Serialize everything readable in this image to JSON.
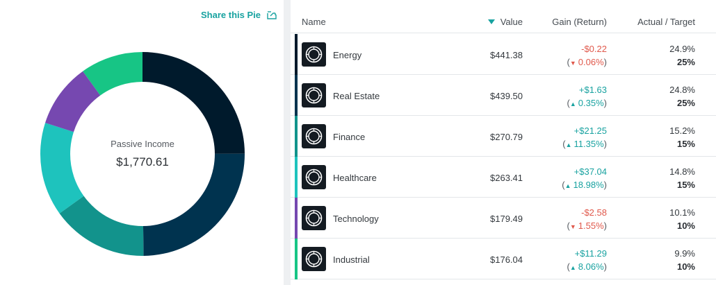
{
  "pie": {
    "share_label": "Share this Pie",
    "center_label": "Passive Income",
    "center_value": "$1,770.61"
  },
  "table": {
    "headers": {
      "name": "Name",
      "value": "Value",
      "gain": "Gain (Return)",
      "target": "Actual / Target"
    },
    "rows": [
      {
        "name": "Energy",
        "value": "$441.38",
        "gain": "-$0.22",
        "ret": "0.06%",
        "dir": "down",
        "actual": "24.9%",
        "target": "25%",
        "color": "#001a2c",
        "share": 24.9
      },
      {
        "name": "Real Estate",
        "value": "$439.50",
        "gain": "+$1.63",
        "ret": "0.35%",
        "dir": "up",
        "actual": "24.8%",
        "target": "25%",
        "color": "#00334f",
        "share": 24.8
      },
      {
        "name": "Finance",
        "value": "$270.79",
        "gain": "+$21.25",
        "ret": "11.35%",
        "dir": "up",
        "actual": "15.2%",
        "target": "15%",
        "color": "#12938c",
        "share": 15.2
      },
      {
        "name": "Healthcare",
        "value": "$263.41",
        "gain": "+$37.04",
        "ret": "18.98%",
        "dir": "up",
        "actual": "14.8%",
        "target": "15%",
        "color": "#1ec3bd",
        "share": 14.8
      },
      {
        "name": "Technology",
        "value": "$179.49",
        "gain": "-$2.58",
        "ret": "1.55%",
        "dir": "down",
        "actual": "10.1%",
        "target": "10%",
        "color": "#7648b0",
        "share": 10.1
      },
      {
        "name": "Industrial",
        "value": "$176.04",
        "gain": "+$11.29",
        "ret": "8.06%",
        "dir": "up",
        "actual": "9.9%",
        "target": "10%",
        "color": "#17c585",
        "share": 9.9
      }
    ]
  }
}
